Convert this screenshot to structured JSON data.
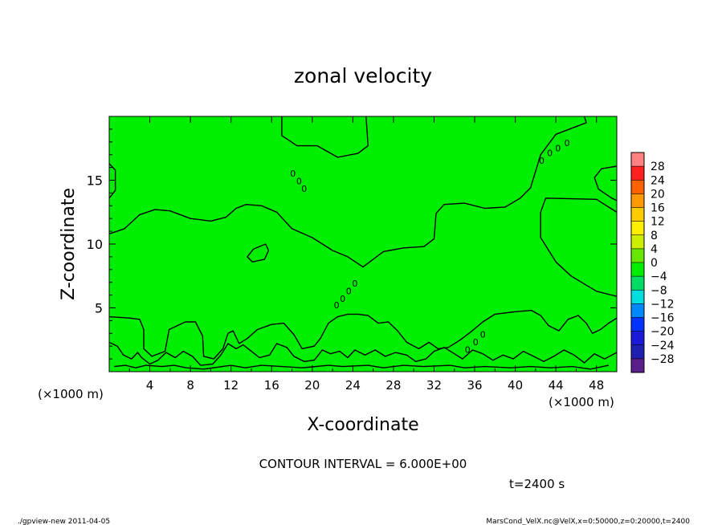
{
  "chart_data": {
    "type": "heatmap",
    "title": "zonal velocity",
    "xlabel": "X-coordinate",
    "ylabel": "Z-coordinate",
    "x_unit_left": "(×1000 m)",
    "x_unit_right": "(×1000 m)",
    "xlim": [
      0,
      50
    ],
    "ylim": [
      0,
      20
    ],
    "x_ticks": [
      "4",
      "8",
      "12",
      "16",
      "20",
      "24",
      "28",
      "32",
      "36",
      "40",
      "44",
      "48"
    ],
    "y_ticks": [
      "5",
      "10",
      "15"
    ],
    "contour_interval_text": "CONTOUR INTERVAL = 6.000E+00",
    "time_label": "t=2400 s",
    "field_color": "#00ee00",
    "contour_color": "#000000",
    "colorbar": {
      "labels": [
        "28",
        "24",
        "20",
        "16",
        "12",
        "8",
        "4",
        "0",
        "−4",
        "−8",
        "−12",
        "−16",
        "−20",
        "−24",
        "−28"
      ],
      "colors": [
        "#ff8080",
        "#ff2020",
        "#ff6000",
        "#ff9900",
        "#ffcc00",
        "#ffee00",
        "#ccee00",
        "#66e600",
        "#00ee00",
        "#00dd66",
        "#00dddd",
        "#0088ff",
        "#0033ff",
        "#1a1ad9",
        "#2020b0",
        "#5a1e8a"
      ]
    },
    "contour_lines": [
      [
        [
          0,
          10.8
        ],
        [
          1.5,
          11.2
        ],
        [
          3,
          12.3
        ],
        [
          4.5,
          12.7
        ],
        [
          6,
          12.6
        ],
        [
          8,
          12
        ],
        [
          10,
          11.8
        ],
        [
          11.5,
          12.1
        ],
        [
          12.5,
          12.8
        ],
        [
          13.5,
          13.1
        ],
        [
          15,
          13
        ],
        [
          16.5,
          12.5
        ],
        [
          18,
          11.2
        ],
        [
          20,
          10.5
        ],
        [
          22,
          9.5
        ],
        [
          23.5,
          9
        ],
        [
          25,
          8.2
        ],
        [
          27,
          9.4
        ],
        [
          29,
          9.7
        ],
        [
          31,
          9.8
        ],
        [
          32,
          10.4
        ],
        [
          32.2,
          12.4
        ],
        [
          33,
          13.1
        ],
        [
          35,
          13.2
        ],
        [
          37,
          12.8
        ],
        [
          39,
          12.9
        ],
        [
          40.5,
          13.6
        ],
        [
          41.5,
          14.4
        ],
        [
          42.5,
          17
        ],
        [
          44,
          18.6
        ],
        [
          46,
          19.2
        ],
        [
          47,
          19.5
        ],
        [
          46.8,
          20
        ]
      ],
      [
        [
          17,
          20
        ],
        [
          17,
          18.5
        ],
        [
          18.5,
          17.7
        ],
        [
          20.5,
          17.7
        ],
        [
          22.5,
          16.8
        ],
        [
          24.5,
          17.1
        ],
        [
          25.5,
          17.7
        ],
        [
          25.3,
          20
        ]
      ],
      [
        [
          14.2,
          9.6
        ],
        [
          15.4,
          10
        ],
        [
          15.7,
          9.5
        ],
        [
          15.3,
          8.8
        ],
        [
          14.1,
          8.6
        ],
        [
          13.6,
          9
        ],
        [
          14.2,
          9.6
        ]
      ],
      [
        [
          50,
          12.5
        ],
        [
          48,
          13.5
        ],
        [
          43,
          13.6
        ],
        [
          42.5,
          12.5
        ],
        [
          42.5,
          10.5
        ],
        [
          44,
          8.6
        ],
        [
          45.5,
          7.5
        ],
        [
          48,
          6.3
        ],
        [
          50,
          5.9
        ]
      ],
      [
        [
          50,
          16.1
        ],
        [
          48.5,
          15.9
        ],
        [
          47.8,
          15.2
        ],
        [
          48.2,
          14.3
        ],
        [
          49.5,
          13.6
        ],
        [
          50,
          13.4
        ]
      ],
      [
        [
          0,
          16.3
        ],
        [
          0.6,
          15.8
        ],
        [
          0.6,
          14.2
        ],
        [
          0,
          13.6
        ]
      ],
      [
        [
          0,
          4.3
        ],
        [
          2,
          4.2
        ],
        [
          3,
          4.1
        ],
        [
          3.4,
          3.3
        ],
        [
          3.4,
          1.8
        ],
        [
          4.2,
          1.2
        ],
        [
          5.5,
          1.6
        ],
        [
          5.9,
          3.3
        ],
        [
          7.5,
          3.9
        ],
        [
          8.5,
          3.9
        ],
        [
          9.2,
          2.8
        ],
        [
          9.3,
          1.2
        ],
        [
          10.3,
          1.0
        ],
        [
          11.2,
          1.8
        ],
        [
          11.7,
          3
        ],
        [
          12.2,
          3.2
        ],
        [
          12.8,
          2.2
        ],
        [
          13.6,
          2.6
        ],
        [
          14.6,
          3.3
        ],
        [
          16,
          3.7
        ],
        [
          17.2,
          3.8
        ],
        [
          18.2,
          2.9
        ],
        [
          19,
          1.8
        ],
        [
          20.2,
          2
        ],
        [
          20.8,
          2.6
        ],
        [
          21.6,
          3.8
        ],
        [
          22.5,
          4.3
        ],
        [
          23.5,
          4.5
        ],
        [
          24.5,
          4.5
        ],
        [
          25.5,
          4.4
        ],
        [
          26.5,
          3.8
        ],
        [
          27.5,
          3.9
        ],
        [
          28.4,
          3.2
        ],
        [
          29.3,
          2.3
        ],
        [
          30.5,
          1.8
        ],
        [
          31.5,
          2.3
        ],
        [
          32.4,
          1.8
        ],
        [
          33.4,
          1.9
        ],
        [
          34.6,
          2.5
        ],
        [
          35.6,
          3.1
        ],
        [
          36.8,
          3.9
        ],
        [
          38,
          4.5
        ],
        [
          40,
          4.7
        ],
        [
          41.6,
          4.8
        ],
        [
          42.5,
          4.4
        ],
        [
          43.3,
          3.6
        ],
        [
          44.3,
          3.2
        ],
        [
          45.2,
          4.1
        ],
        [
          46.2,
          4.4
        ],
        [
          47,
          3.8
        ],
        [
          47.6,
          3.0
        ],
        [
          48.4,
          3.3
        ],
        [
          49.2,
          3.8
        ],
        [
          50,
          4.2
        ]
      ],
      [
        [
          0,
          2.3
        ],
        [
          0.8,
          2.0
        ],
        [
          1.4,
          1.3
        ],
        [
          2.2,
          1.0
        ],
        [
          2.8,
          1.5
        ],
        [
          3.2,
          1.1
        ],
        [
          4,
          0.6
        ],
        [
          4.8,
          0.9
        ],
        [
          5.6,
          1.5
        ],
        [
          6.5,
          1.1
        ],
        [
          7.3,
          1.6
        ],
        [
          8.2,
          1.2
        ],
        [
          9,
          0.5
        ],
        [
          10.2,
          0.6
        ],
        [
          11,
          1.3
        ],
        [
          11.7,
          2.2
        ],
        [
          12.5,
          1.8
        ],
        [
          13.2,
          2.1
        ],
        [
          14,
          1.6
        ],
        [
          14.8,
          1.1
        ],
        [
          15.8,
          1.3
        ],
        [
          16.5,
          2.2
        ],
        [
          17.5,
          1.9
        ],
        [
          18.2,
          1.2
        ],
        [
          19.2,
          0.8
        ],
        [
          20.2,
          0.9
        ],
        [
          21,
          1.7
        ],
        [
          21.8,
          1.4
        ],
        [
          22.7,
          1.6
        ],
        [
          23.5,
          1.1
        ],
        [
          24.2,
          1.7
        ],
        [
          25.2,
          1.3
        ],
        [
          26.2,
          1.7
        ],
        [
          27.2,
          1.2
        ],
        [
          28.2,
          1.5
        ],
        [
          29.3,
          1.3
        ],
        [
          30.2,
          0.8
        ],
        [
          31.2,
          1.0
        ],
        [
          32,
          1.6
        ],
        [
          33,
          1.9
        ],
        [
          34,
          1.4
        ],
        [
          34.8,
          1.0
        ],
        [
          35.8,
          1.7
        ],
        [
          36.8,
          1.4
        ],
        [
          37.8,
          0.9
        ],
        [
          38.8,
          1.3
        ],
        [
          39.8,
          1.0
        ],
        [
          40.8,
          1.6
        ],
        [
          41.8,
          1.2
        ],
        [
          42.8,
          0.8
        ],
        [
          43.8,
          1.2
        ],
        [
          44.8,
          1.7
        ],
        [
          45.8,
          1.3
        ],
        [
          46.8,
          0.7
        ],
        [
          47.8,
          1.4
        ],
        [
          48.8,
          1.0
        ],
        [
          50,
          1.5
        ]
      ],
      [
        [
          0.5,
          0.4
        ],
        [
          1.6,
          0.5
        ],
        [
          2.6,
          0.3
        ],
        [
          3.6,
          0.5
        ],
        [
          5.2,
          0.4
        ],
        [
          6.4,
          0.5
        ],
        [
          7.6,
          0.3
        ],
        [
          9.3,
          0.2
        ],
        [
          12,
          0.5
        ],
        [
          13.4,
          0.3
        ],
        [
          15,
          0.5
        ],
        [
          17,
          0.4
        ],
        [
          19,
          0.3
        ],
        [
          21.6,
          0.5
        ],
        [
          23,
          0.4
        ],
        [
          25.5,
          0.5
        ],
        [
          27,
          0.3
        ],
        [
          29,
          0.5
        ],
        [
          31,
          0.4
        ],
        [
          33.6,
          0.5
        ],
        [
          35,
          0.3
        ],
        [
          37,
          0.4
        ],
        [
          39.5,
          0.3
        ],
        [
          41.5,
          0.4
        ],
        [
          43.5,
          0.3
        ],
        [
          45.6,
          0.4
        ],
        [
          47.4,
          0.2
        ],
        [
          49.2,
          0.5
        ]
      ]
    ],
    "contour_labels": [
      [
        [
          18.1,
          15.5
        ],
        "0"
      ],
      [
        [
          18.7,
          14.9
        ],
        "0"
      ],
      [
        [
          19.2,
          14.3
        ],
        "0"
      ],
      [
        [
          22.4,
          5.2
        ],
        "0"
      ],
      [
        [
          23,
          5.7
        ],
        "0"
      ],
      [
        [
          23.6,
          6.3
        ],
        "0"
      ],
      [
        [
          24.2,
          6.9
        ],
        "0"
      ],
      [
        [
          42.6,
          16.5
        ],
        "0"
      ],
      [
        [
          43.4,
          17.1
        ],
        "0"
      ],
      [
        [
          44.2,
          17.5
        ],
        "0"
      ],
      [
        [
          45.1,
          17.9
        ],
        "0"
      ],
      [
        [
          35.3,
          1.7
        ],
        "0"
      ],
      [
        [
          36.1,
          2.3
        ],
        "0"
      ],
      [
        [
          36.8,
          2.9
        ],
        "0"
      ]
    ]
  },
  "footer": {
    "left_text": "./gpview-new  2011-04-05",
    "right_text": "MarsCond_VelX.nc@VelX,x=0:50000,z=0:20000,t=2400"
  }
}
